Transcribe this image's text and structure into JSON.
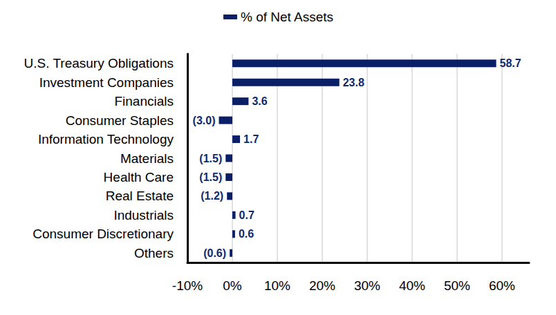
{
  "chart_data": {
    "type": "bar",
    "orientation": "horizontal",
    "categories": [
      "U.S. Treasury Obligations",
      "Investment Companies",
      "Financials",
      "Consumer Staples",
      "Information Technology",
      "Materials",
      "Health Care",
      "Real Estate",
      "Industrials",
      "Consumer Discretionary",
      "Others"
    ],
    "series": [
      {
        "name": "% of Net Assets",
        "color": "#0a1f66",
        "values": [
          58.7,
          23.8,
          3.6,
          -3.0,
          1.7,
          -1.5,
          -1.5,
          -1.2,
          0.7,
          0.6,
          -0.6
        ],
        "value_labels": [
          "58.7",
          "23.8",
          "3.6",
          "(3.0)",
          "1.7",
          "(1.5)",
          "(1.5)",
          "(1.2)",
          "0.7",
          "0.6",
          "(0.6)"
        ]
      }
    ],
    "xlim": [
      -10,
      66
    ],
    "xticks": [
      {
        "value": -10,
        "label": "-10%"
      },
      {
        "value": 0,
        "label": "0%"
      },
      {
        "value": 10,
        "label": "10%"
      },
      {
        "value": 20,
        "label": "20%"
      },
      {
        "value": 30,
        "label": "30%"
      },
      {
        "value": 40,
        "label": "40%"
      },
      {
        "value": 50,
        "label": "50%"
      },
      {
        "value": 60,
        "label": "60%"
      }
    ],
    "grid": true,
    "legend": "top",
    "data_labels": true
  }
}
